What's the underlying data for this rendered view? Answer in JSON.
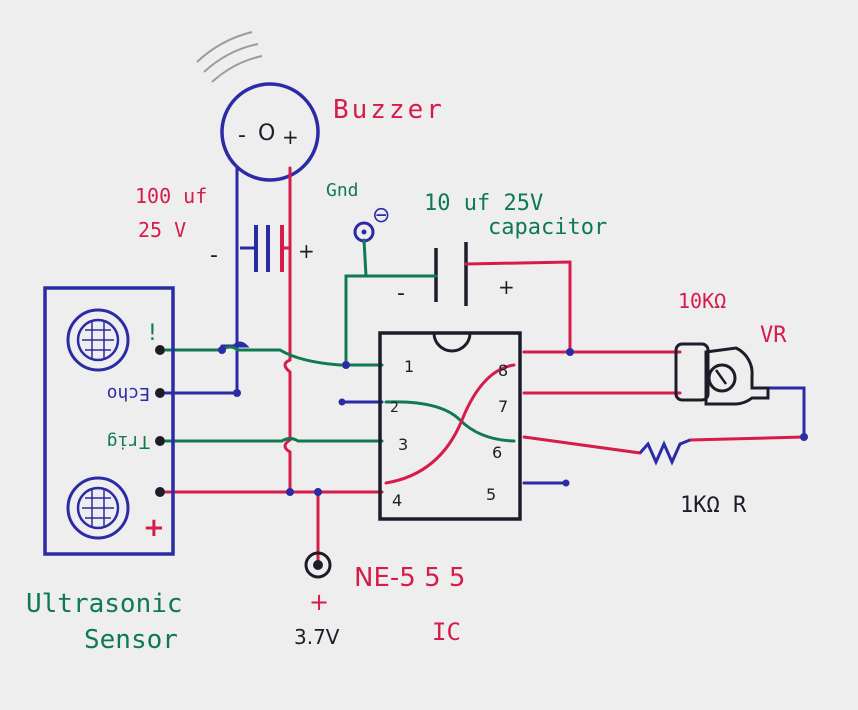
{
  "labels": {
    "buzzer": "Buzzer",
    "buzzer_minus": "-",
    "buzzer_plus": "+",
    "buzzer_center": "O",
    "cap100_value": "100 uf",
    "cap100_voltage": "25 V",
    "cap100_minus": "-",
    "cap100_plus": "+",
    "gnd": "Gnd",
    "gnd_symbol": "⊖",
    "cap10_value": "10 uf  25V",
    "cap10_name": "capacitor",
    "cap10_minus": "-",
    "cap10_plus": "+",
    "vr_value": "10KΩ",
    "vr_name": "VR",
    "r_value": "1KΩ  R",
    "sensor_pin_vcc": "!",
    "sensor_pin_echo": "Echo",
    "sensor_pin_trig": "Trig",
    "sensor_plus": "+",
    "sensor_name_line1": "Ultrasonic",
    "sensor_name_line2": "Sensor",
    "battery_plus": "+",
    "battery_voltage": "3.7V",
    "ic_name_line1": "NE-5 5 5",
    "ic_name_line2": "IC"
  },
  "ic_pins": {
    "left": [
      "1",
      "2",
      "3",
      "4"
    ],
    "right": [
      "8",
      "7",
      "6",
      "5"
    ]
  },
  "colors": {
    "blue": "#2b2ba6",
    "red": "#d61c4a",
    "green": "#0f7a52",
    "black": "#1d1d2a",
    "paper": "#eeeeef"
  }
}
